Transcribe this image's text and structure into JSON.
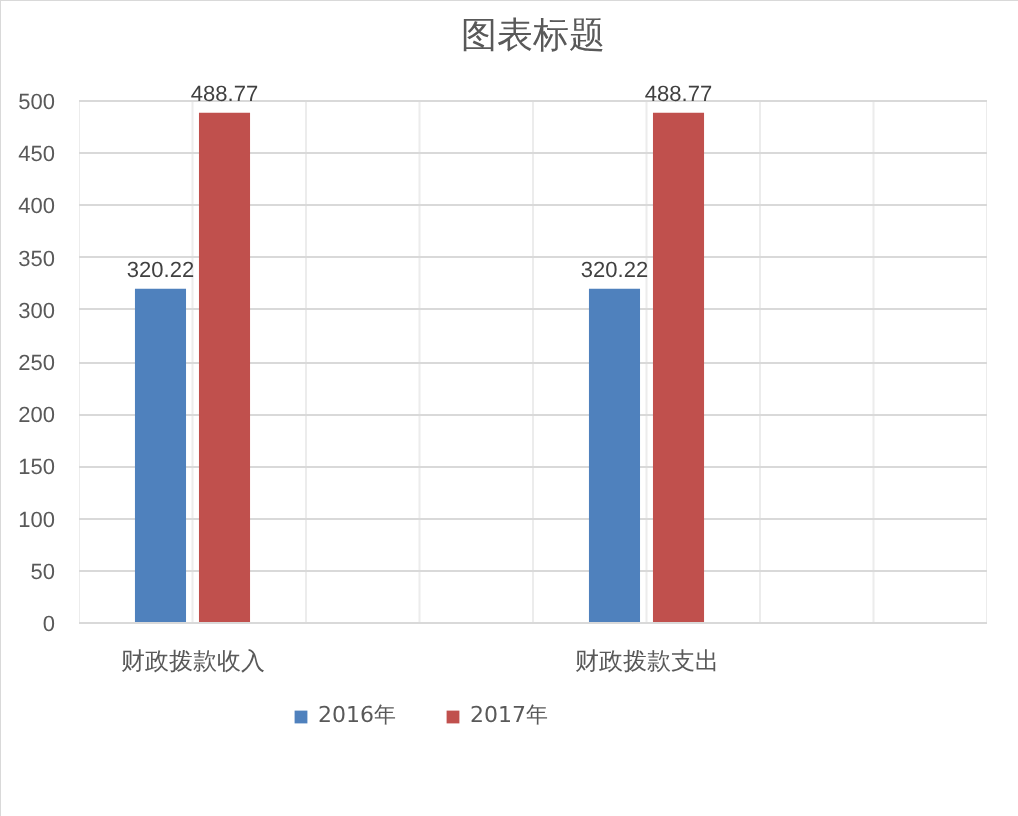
{
  "chart_data": {
    "type": "bar",
    "title": "图表标题",
    "categories": [
      "财政拨款收入",
      null,
      "财政拨款支出",
      null
    ],
    "series": [
      {
        "name": "2016年",
        "color": "#4f81bd",
        "values": [
          320.22,
          null,
          320.22,
          null
        ]
      },
      {
        "name": "2017年",
        "color": "#c0504d",
        "values": [
          488.77,
          null,
          488.77,
          null
        ]
      }
    ],
    "ylim": [
      0,
      500
    ],
    "yticks": [
      0,
      50,
      100,
      150,
      200,
      250,
      300,
      350,
      400,
      450,
      500
    ],
    "grid": true,
    "legend": "bottom",
    "data_labels": true
  }
}
